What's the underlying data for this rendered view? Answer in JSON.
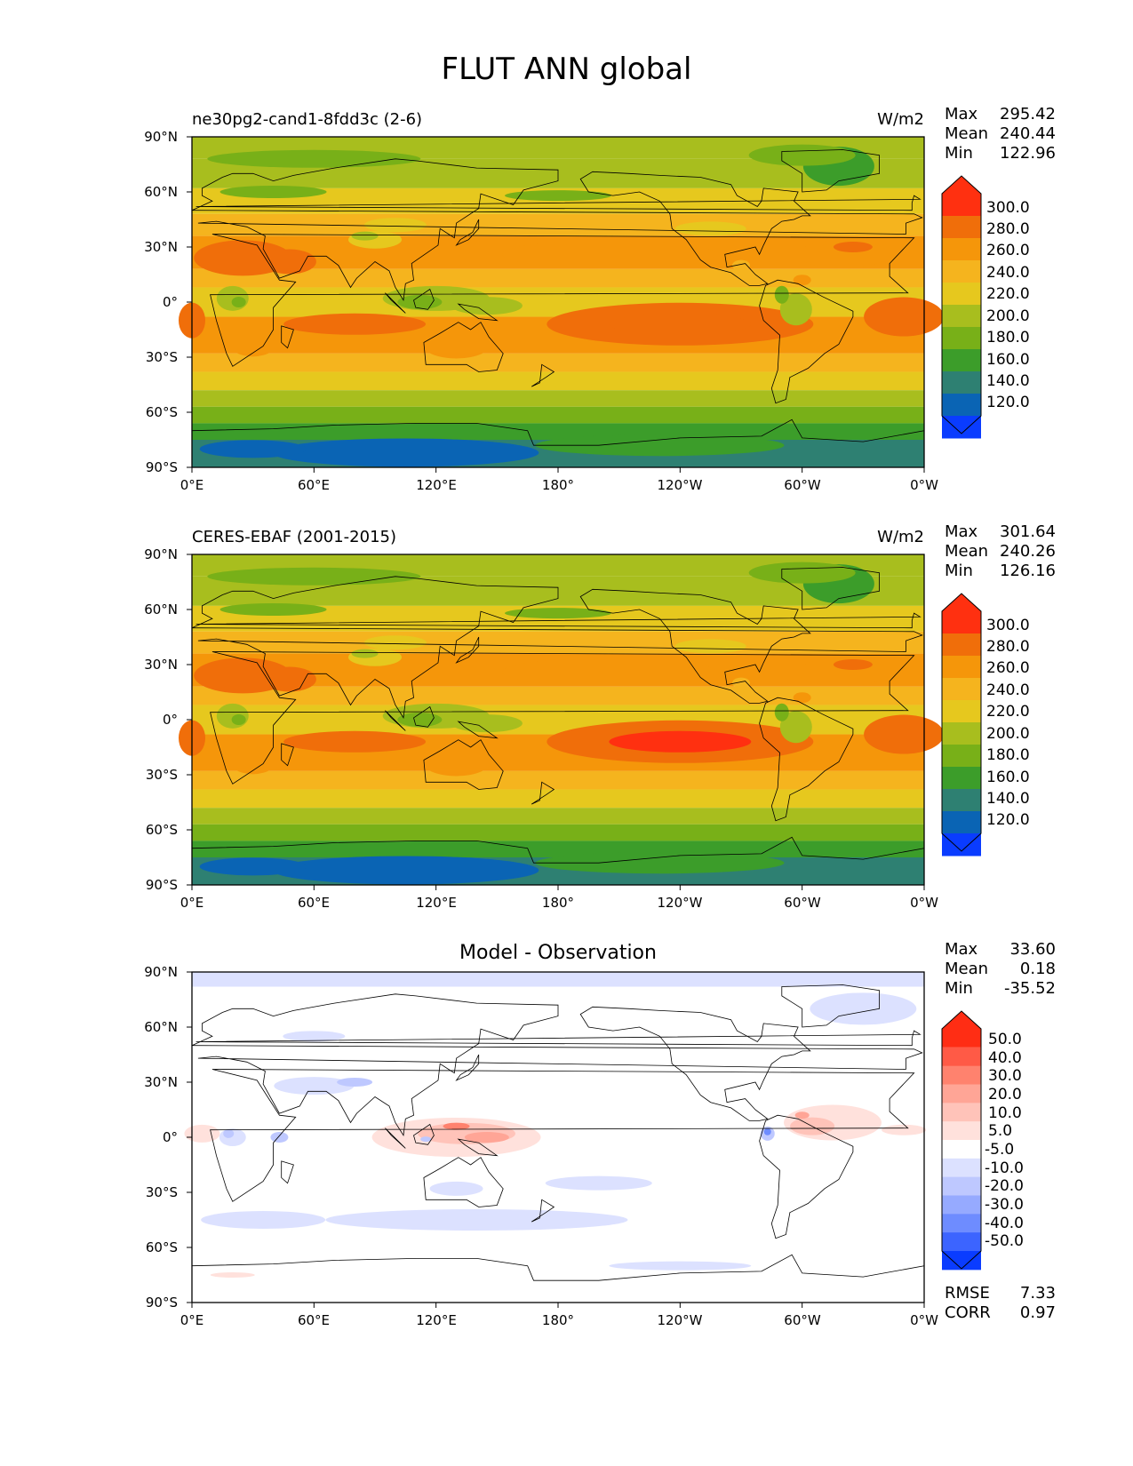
{
  "figure": {
    "title": "FLUT ANN global"
  },
  "axis_labels": {
    "y": [
      "90°N",
      "60°N",
      "30°N",
      "0°",
      "30°S",
      "60°S",
      "90°S"
    ],
    "x": [
      "0°E",
      "60°E",
      "120°E",
      "180°",
      "120°W",
      "60°W",
      "0°W"
    ]
  },
  "panels": [
    {
      "left_title": "ne30pg2-cand1-8fdd3c (2-6)",
      "units": "W/m2",
      "center_title": "",
      "stats": [
        {
          "label": "Max",
          "value": "295.42"
        },
        {
          "label": "Mean",
          "value": "240.44"
        },
        {
          "label": "Min",
          "value": "122.96"
        }
      ],
      "colorbar_labels": [
        "300.0",
        "280.0",
        "260.0",
        "240.0",
        "220.0",
        "200.0",
        "180.0",
        "160.0",
        "140.0",
        "120.0"
      ]
    },
    {
      "left_title": "CERES-EBAF (2001-2015)",
      "units": "W/m2",
      "center_title": "",
      "stats": [
        {
          "label": "Max",
          "value": "301.64"
        },
        {
          "label": "Mean",
          "value": "240.26"
        },
        {
          "label": "Min",
          "value": "126.16"
        }
      ],
      "colorbar_labels": [
        "300.0",
        "280.0",
        "260.0",
        "240.0",
        "220.0",
        "200.0",
        "180.0",
        "160.0",
        "140.0",
        "120.0"
      ]
    },
    {
      "left_title": "",
      "units": "",
      "center_title": "Model - Observation",
      "stats": [
        {
          "label": "Max",
          "value": "33.60"
        },
        {
          "label": "Mean",
          "value": "0.18"
        },
        {
          "label": "Min",
          "value": "-35.52"
        }
      ],
      "colorbar_labels": [
        "50.0",
        "40.0",
        "30.0",
        "20.0",
        "10.0",
        "5.0",
        "-5.0",
        "-10.0",
        "-20.0",
        "-30.0",
        "-40.0",
        "-50.0"
      ],
      "extra_stats": [
        {
          "label": "RMSE",
          "value": "7.33"
        },
        {
          "label": "CORR",
          "value": "0.97"
        }
      ]
    }
  ],
  "colors": {
    "abs_scale": [
      "#0a3cff",
      "#0a64b4",
      "#2e8072",
      "#3c9d2a",
      "#78b018",
      "#a8be1e",
      "#e6c81e",
      "#f5b41e",
      "#f5960a",
      "#f06e0a",
      "#ff3010"
    ],
    "diff_scale": [
      "#0a3cff",
      "#3c64ff",
      "#6e8cff",
      "#96aaff",
      "#bec8ff",
      "#dce1ff",
      "#ffffff",
      "#ffe1dc",
      "#ffc3b9",
      "#ffa596",
      "#ff826e",
      "#ff5a46",
      "#ff2d14"
    ]
  },
  "chart_data": [
    {
      "type": "heatmap",
      "title": "ne30pg2-cand1-8fdd3c (2-6)",
      "units": "W/m2",
      "x_ticks": [
        "0°E",
        "60°E",
        "120°E",
        "180°",
        "120°W",
        "60°W",
        "0°W"
      ],
      "y_ticks": [
        "90°N",
        "60°N",
        "30°N",
        "0°",
        "30°S",
        "60°S",
        "90°S"
      ],
      "colorbar_levels": [
        120,
        140,
        160,
        180,
        200,
        220,
        240,
        260,
        280,
        300
      ],
      "max": 295.42,
      "mean": 240.44,
      "min": 122.96,
      "zonal_profile": {
        "lat": [
          90,
          75,
          60,
          45,
          30,
          15,
          0,
          -15,
          -30,
          -45,
          -60,
          -70,
          -80,
          -90
        ],
        "value": [
          205,
          200,
          210,
          225,
          255,
          260,
          245,
          265,
          250,
          225,
          205,
          185,
          150,
          150
        ]
      }
    },
    {
      "type": "heatmap",
      "title": "CERES-EBAF (2001-2015)",
      "units": "W/m2",
      "x_ticks": [
        "0°E",
        "60°E",
        "120°E",
        "180°",
        "120°W",
        "60°W",
        "0°W"
      ],
      "y_ticks": [
        "90°N",
        "60°N",
        "30°N",
        "0°",
        "30°S",
        "60°S",
        "90°S"
      ],
      "colorbar_levels": [
        120,
        140,
        160,
        180,
        200,
        220,
        240,
        260,
        280,
        300
      ],
      "max": 301.64,
      "mean": 240.26,
      "min": 126.16,
      "zonal_profile": {
        "lat": [
          90,
          75,
          60,
          45,
          30,
          15,
          0,
          -15,
          -30,
          -45,
          -60,
          -70,
          -80,
          -90
        ],
        "value": [
          205,
          200,
          210,
          225,
          255,
          258,
          245,
          265,
          250,
          225,
          205,
          185,
          150,
          150
        ]
      }
    },
    {
      "type": "heatmap",
      "title": "Model - Observation",
      "x_ticks": [
        "0°E",
        "60°E",
        "120°E",
        "180°",
        "120°W",
        "60°W",
        "0°W"
      ],
      "y_ticks": [
        "90°N",
        "60°N",
        "30°N",
        "0°",
        "30°S",
        "60°S",
        "90°S"
      ],
      "colorbar_levels": [
        -50,
        -40,
        -30,
        -20,
        -10,
        -5,
        5,
        10,
        20,
        30,
        40,
        50
      ],
      "max": 33.6,
      "mean": 0.18,
      "min": -35.52,
      "rmse": 7.33,
      "corr": 0.97
    }
  ]
}
